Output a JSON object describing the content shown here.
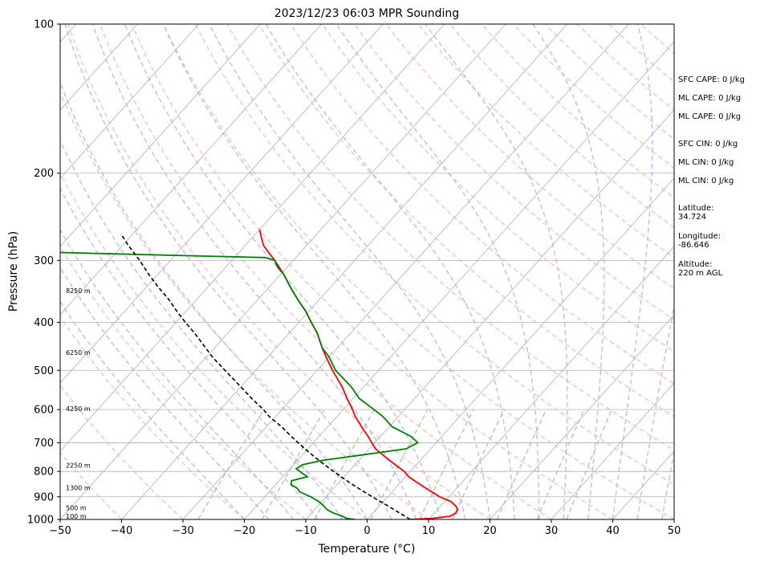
{
  "chart_data": {
    "type": "line",
    "title": "2023/12/23 06:03 MPR Sounding",
    "xlabel": "Temperature (°C)",
    "ylabel": "Pressure (hPa)",
    "xlim": [
      -50,
      50
    ],
    "ylim": [
      1000,
      100
    ],
    "y_scale": "log",
    "skew": "skew-T",
    "x_ticks": [
      "−50",
      "−40",
      "−30",
      "−20",
      "−10",
      "0",
      "10",
      "20",
      "30",
      "40",
      "50"
    ],
    "x_tick_values": [
      -50,
      -40,
      -30,
      -20,
      -10,
      0,
      10,
      20,
      30,
      40,
      50
    ],
    "y_ticks": [
      "100",
      "200",
      "300",
      "400",
      "500",
      "600",
      "700",
      "800",
      "900",
      "1000"
    ],
    "y_tick_values": [
      100,
      200,
      300,
      400,
      500,
      600,
      700,
      800,
      900,
      1000
    ],
    "grid": true,
    "colors": {
      "temperature": "#ff0000",
      "dewpoint": "#008000",
      "parcel": "#000000",
      "dry_adiabats": "#ffaaaa",
      "moist_adiabats": "#aaaaff",
      "mixing_ratio": "#99cc99",
      "isotherms": "#aaaaaa"
    },
    "series": [
      {
        "key": "temperature",
        "pressure": [
          1000,
          995,
          985,
          970,
          955,
          940,
          920,
          900,
          880,
          860,
          840,
          820,
          800,
          780,
          760,
          740,
          720,
          700,
          680,
          650,
          620,
          600,
          570,
          540,
          500,
          470,
          450,
          420,
          400,
          380,
          360,
          340,
          320,
          300,
          290,
          280,
          270,
          260
        ],
        "temp": [
          7.0,
          10.5,
          13.0,
          13.5,
          13.3,
          12.5,
          11.0,
          8.5,
          6.5,
          4.5,
          2.5,
          0.5,
          -1.0,
          -3.0,
          -5.0,
          -7.0,
          -9.0,
          -10.5,
          -12.0,
          -14.5,
          -17.0,
          -18.5,
          -21.0,
          -23.5,
          -27.5,
          -30.5,
          -32.5,
          -35.5,
          -38.0,
          -40.5,
          -43.5,
          -46.5,
          -49.5,
          -53.0,
          -55.0,
          -57.0,
          -58.5,
          -60.0
        ]
      },
      {
        "key": "dewpoint",
        "pressure": [
          1000,
          995,
          985,
          970,
          955,
          940,
          920,
          900,
          880,
          865,
          850,
          835,
          820,
          805,
          790,
          775,
          760,
          740,
          720,
          700,
          680,
          650,
          620,
          600,
          570,
          540,
          500,
          470,
          450,
          420,
          400,
          380,
          360,
          340,
          320,
          310,
          300,
          296,
          294,
          290,
          285
        ],
        "temp": [
          -2.0,
          -3.5,
          -4.5,
          -6.5,
          -8.0,
          -9.0,
          -10.5,
          -12.5,
          -15.0,
          -16.0,
          -17.5,
          -18.0,
          -16.0,
          -17.5,
          -19.0,
          -18.5,
          -16.0,
          -10.0,
          -4.0,
          -3.0,
          -5.0,
          -9.5,
          -12.5,
          -15.0,
          -19.0,
          -22.0,
          -27.0,
          -30.0,
          -32.5,
          -35.5,
          -38.0,
          -40.5,
          -43.5,
          -46.5,
          -49.5,
          -51.5,
          -53.0,
          -55.0,
          -65.0,
          -85.0,
          -110.0
        ]
      },
      {
        "key": "parcel",
        "pressure": [
          1000,
          970,
          940,
          910,
          880,
          850,
          820,
          800,
          780,
          760,
          740,
          720,
          700,
          680,
          650,
          620,
          600,
          570,
          540,
          500,
          470,
          450,
          420,
          400,
          380,
          360,
          340,
          320,
          300,
          280,
          265
        ],
        "temp": [
          7.0,
          4.3,
          1.5,
          -1.5,
          -4.5,
          -7.5,
          -10.5,
          -12.5,
          -14.5,
          -16.5,
          -18.5,
          -20.5,
          -22.5,
          -24.5,
          -27.5,
          -31.0,
          -33.0,
          -36.5,
          -40.0,
          -45.0,
          -49.0,
          -51.5,
          -55.5,
          -58.5,
          -61.5,
          -64.5,
          -68.0,
          -71.5,
          -75.0,
          -79.0,
          -82.0
        ]
      }
    ],
    "height_labels": [
      "100 m",
      "500 m",
      "1300 m",
      "2250 m",
      "4250 m",
      "6250 m",
      "8250 m"
    ],
    "height_pressures": [
      986,
      948,
      863,
      778,
      598,
      460,
      345
    ],
    "indices": [
      {
        "label": "SFC CAPE: 0 J/kg"
      },
      {
        "label": "ML CAPE: 0 J/kg"
      },
      {
        "label": "ML CAPE: 0 J/kg"
      },
      {
        "label": "SFC CIN: 0 J/kg"
      },
      {
        "label": "ML CIN: 0 J/kg"
      },
      {
        "label": "ML CIN: 0 J/kg"
      }
    ],
    "location": [
      {
        "label": "Latitude:",
        "value": "34.724"
      },
      {
        "label": "Longitude:",
        "value": "-86.646"
      },
      {
        "label": "Altitude:",
        "value": "220 m AGL"
      }
    ]
  }
}
